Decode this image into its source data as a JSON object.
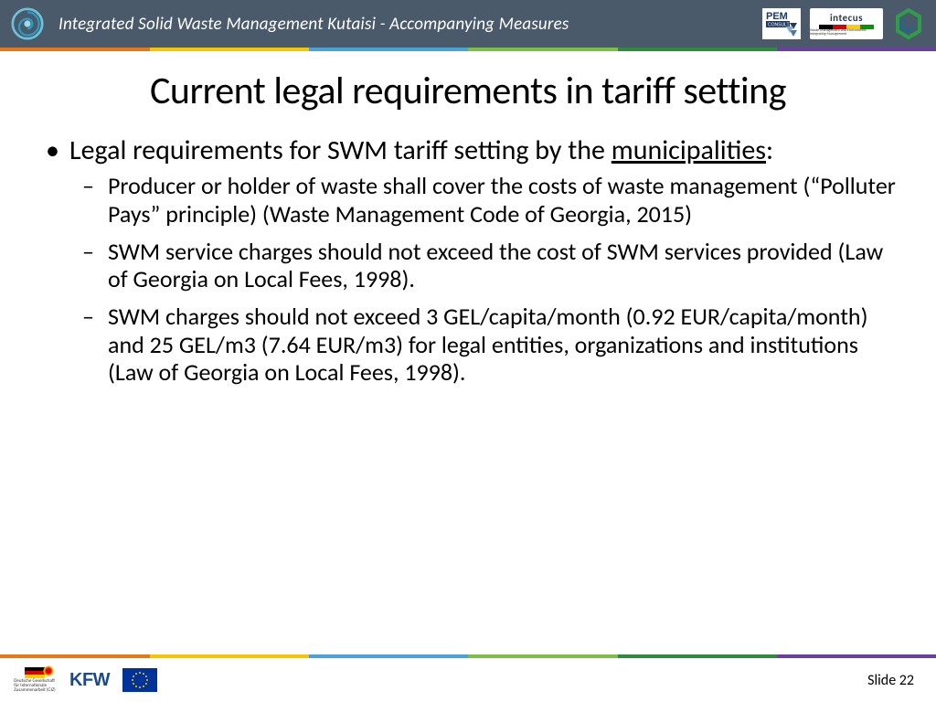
{
  "header": {
    "title": "Integrated Solid Waste Management Kutaisi - Accompanying Measures",
    "logos": {
      "pem_top": "PEM",
      "pem_sub": "CONSULT",
      "intecus": "intecus",
      "intecus_sub": "Waste Management and Environment-Integrating Management"
    },
    "colors": {
      "header_bg": "#4a5a6a",
      "header_text": "#ffffff"
    }
  },
  "rainbow_colors": [
    "#e67817",
    "#f6c400",
    "#4aa3d8",
    "#7bbf44",
    "#2e8b3d",
    "#6b3fa0"
  ],
  "content": {
    "title": "Current legal requirements in tariff setting",
    "bullet_lead": "Legal requirements for SWM tariff setting by the ",
    "bullet_underlined": "municipalities",
    "bullet_tail": ":",
    "subs": [
      "Producer or holder of waste shall cover the costs of waste management (“Polluter Pays” principle) (Waste Management Code of Georgia, 2015)",
      "SWM service charges should not exceed the cost of SWM services provided (Law of Georgia on Local Fees, 1998).",
      "SWM charges should not exceed 3 GEL/capita/month (0.92 EUR/capita/month) and 25 GEL/m3 (7.64 EUR/m3) for legal entities, organizations and institutions (Law of Georgia on Local Fees, 1998)."
    ]
  },
  "footer": {
    "kfw": "KFW",
    "slide_label": "Slide 22"
  }
}
